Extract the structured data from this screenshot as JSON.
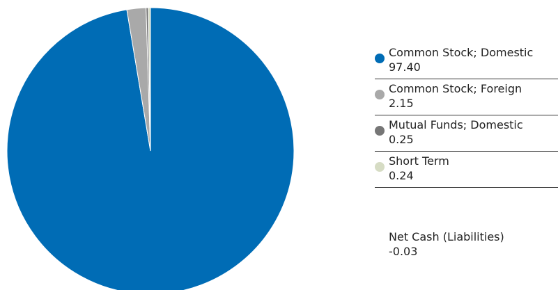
{
  "chart_data": {
    "type": "pie",
    "categories": [
      "Common Stock; Domestic",
      "Common Stock; Foreign",
      "Mutual Funds; Domestic",
      "Short Term"
    ],
    "values": [
      97.4,
      2.15,
      0.25,
      0.24
    ],
    "value_labels": [
      "97.40",
      "2.15",
      "0.25",
      "0.24"
    ],
    "colors": [
      "#006cb5",
      "#a9a9a9",
      "#767676",
      "#d6dcc4"
    ],
    "legend_placement": "right"
  },
  "net_cash": {
    "label": "Net Cash (Liabilities)",
    "value": "-0.03"
  }
}
